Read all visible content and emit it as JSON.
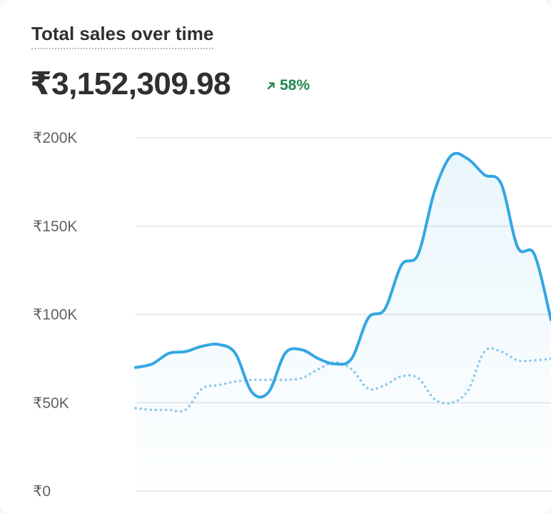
{
  "card": {
    "title": "Total sales over time",
    "total": "₹3,152,309.98",
    "change": "58%",
    "change_direction": "up",
    "change_icon": "arrow-up-right-icon"
  },
  "colors": {
    "current_series": "#33a7e3",
    "comparison_series": "#8cc8ec",
    "gridline": "#e3e3e3",
    "positive_change": "#1f8a4c"
  },
  "chart_data": {
    "type": "line",
    "title": "Total sales over time",
    "xlabel": "",
    "ylabel": "",
    "ylim": [
      0,
      200000
    ],
    "yticks": [
      0,
      50000,
      100000,
      150000,
      200000
    ],
    "ytick_labels": [
      "₹0",
      "₹50K",
      "₹100K",
      "₹150K",
      "₹200K"
    ],
    "grid": true,
    "legend": "none",
    "series": [
      {
        "style": "solid",
        "area_fill": true,
        "values": [
          70000,
          72000,
          78000,
          79000,
          82000,
          83000,
          78000,
          56000,
          56000,
          78000,
          80000,
          75000,
          72000,
          75000,
          98000,
          103000,
          128000,
          134000,
          170000,
          190000,
          188000,
          179000,
          174000,
          138000,
          134000,
          97000
        ]
      },
      {
        "style": "dotted",
        "area_fill": false,
        "values": [
          47000,
          46000,
          46000,
          46000,
          58000,
          60000,
          62000,
          63000,
          63000,
          63000,
          64000,
          69000,
          73000,
          69000,
          58000,
          60000,
          65000,
          64000,
          52000,
          50000,
          57000,
          79000,
          79000,
          74000,
          74000,
          75000
        ]
      }
    ]
  }
}
